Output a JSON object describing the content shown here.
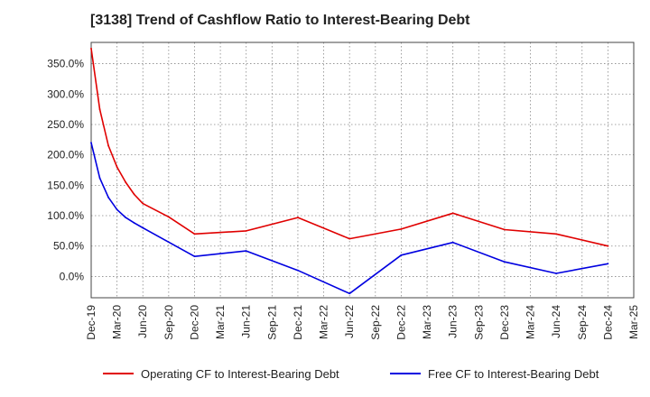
{
  "title": "[3138]  Trend of Cashflow Ratio to Interest-Bearing Debt",
  "chart_data": {
    "type": "line",
    "title": "[3138]  Trend of Cashflow Ratio to Interest-Bearing Debt",
    "xlabel": "",
    "ylabel": "",
    "ylim": [
      -35,
      385
    ],
    "y_ticks": [
      0,
      50,
      100,
      150,
      200,
      250,
      300,
      350
    ],
    "y_tick_labels": [
      "0.0%",
      "50.0%",
      "100.0%",
      "150.0%",
      "200.0%",
      "250.0%",
      "300.0%",
      "350.0%"
    ],
    "x_tick_labels": [
      "Dec-19",
      "Mar-20",
      "Jun-20",
      "Sep-20",
      "Dec-20",
      "Mar-21",
      "Jun-21",
      "Sep-21",
      "Dec-21",
      "Mar-22",
      "Jun-22",
      "Sep-22",
      "Dec-22",
      "Mar-23",
      "Jun-23",
      "Sep-23",
      "Dec-23",
      "Mar-24",
      "Jun-24",
      "Sep-24",
      "Dec-24",
      "Mar-25"
    ],
    "x_unit": "month index since Dec-19",
    "grid": true,
    "legend_position": "bottom",
    "series": [
      {
        "name": "Operating CF to Interest-Bearing Debt",
        "color": "#e00000",
        "points": [
          [
            0,
            375
          ],
          [
            1,
            275
          ],
          [
            2,
            215
          ],
          [
            3,
            180
          ],
          [
            4,
            155
          ],
          [
            5,
            135
          ],
          [
            6,
            120
          ],
          [
            9,
            98
          ],
          [
            12,
            70
          ],
          [
            18,
            75
          ],
          [
            24,
            97
          ],
          [
            30,
            62
          ],
          [
            36,
            78
          ],
          [
            42,
            104
          ],
          [
            48,
            77
          ],
          [
            54,
            70
          ],
          [
            60,
            50
          ]
        ]
      },
      {
        "name": "Free CF to Interest-Bearing Debt",
        "color": "#0000e0",
        "points": [
          [
            0,
            220
          ],
          [
            1,
            162
          ],
          [
            2,
            130
          ],
          [
            3,
            110
          ],
          [
            4,
            97
          ],
          [
            5,
            88
          ],
          [
            6,
            80
          ],
          [
            12,
            33
          ],
          [
            18,
            42
          ],
          [
            24,
            10
          ],
          [
            30,
            -28
          ],
          [
            36,
            35
          ],
          [
            42,
            56
          ],
          [
            48,
            24
          ],
          [
            54,
            5
          ],
          [
            60,
            21
          ]
        ]
      }
    ]
  }
}
